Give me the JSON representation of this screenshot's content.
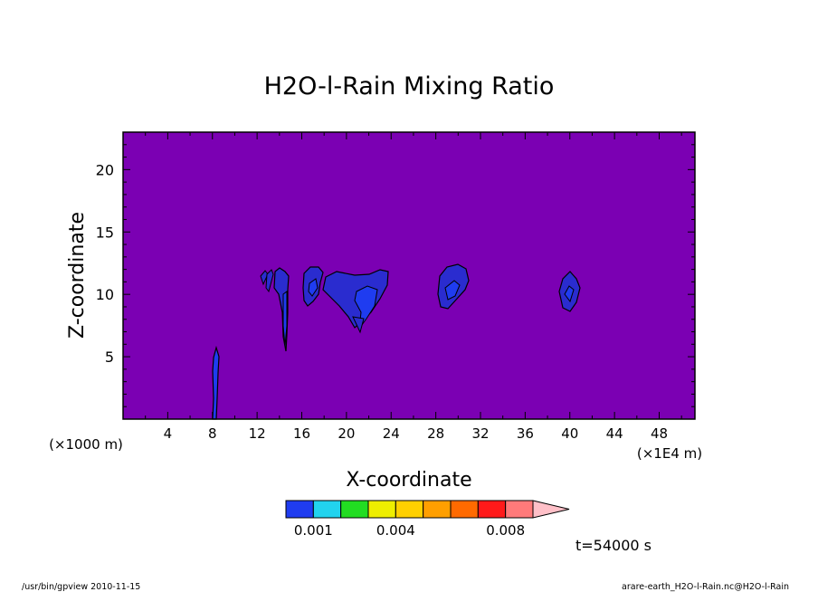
{
  "chart_data": {
    "type": "contour",
    "title": "H2O-l-Rain Mixing Ratio",
    "xlabel": "X-coordinate",
    "ylabel": "Z-coordinate",
    "x_unit_left": "(×1000 m)",
    "x_unit_right": "(×1E4 m)",
    "xlim": [
      0,
      51.2
    ],
    "ylim": [
      0,
      23
    ],
    "x_ticks": [
      4,
      8,
      12,
      16,
      20,
      24,
      28,
      32,
      36,
      40,
      44,
      48
    ],
    "y_ticks": [
      5,
      10,
      15,
      20
    ],
    "background_color": "#7b00b3",
    "colorbar": {
      "colors": [
        "#1f3cf0",
        "#22d3ee",
        "#22dd22",
        "#eeee00",
        "#ffd000",
        "#ff9f00",
        "#ff6a00",
        "#ff1a1a",
        "#ff7a7a",
        "#ffc0c8"
      ],
      "tick_labels": [
        "0.001",
        "0.004",
        "0.008"
      ],
      "tick_positions": [
        1,
        4,
        8
      ],
      "extend": "max"
    },
    "features": [
      {
        "name": "column-x8",
        "x": 8.4,
        "z_bottom": 0,
        "z_top": 5.6,
        "level": "low"
      },
      {
        "name": "cell-x14",
        "x": 14.5,
        "z_bottom": 5.5,
        "z_top": 11.8,
        "level": "low"
      },
      {
        "name": "cell-x17",
        "x": 17.0,
        "z_bottom": 9.0,
        "z_top": 12.2,
        "level": "low"
      },
      {
        "name": "cell-x21",
        "x": 21.5,
        "z_bottom": 7.0,
        "z_top": 12.0,
        "level": "low"
      },
      {
        "name": "cell-x29",
        "x": 29.0,
        "z_bottom": 9.0,
        "z_top": 12.3,
        "level": "low"
      },
      {
        "name": "cell-x40",
        "x": 39.7,
        "z_bottom": 8.7,
        "z_top": 11.7,
        "level": "low"
      }
    ]
  },
  "time_label": "t=54000 s",
  "footer": {
    "left": "/usr/bin/gpview  2010-11-15",
    "right": "arare-earth_H2O-l-Rain.nc@H2O-l-Rain"
  }
}
